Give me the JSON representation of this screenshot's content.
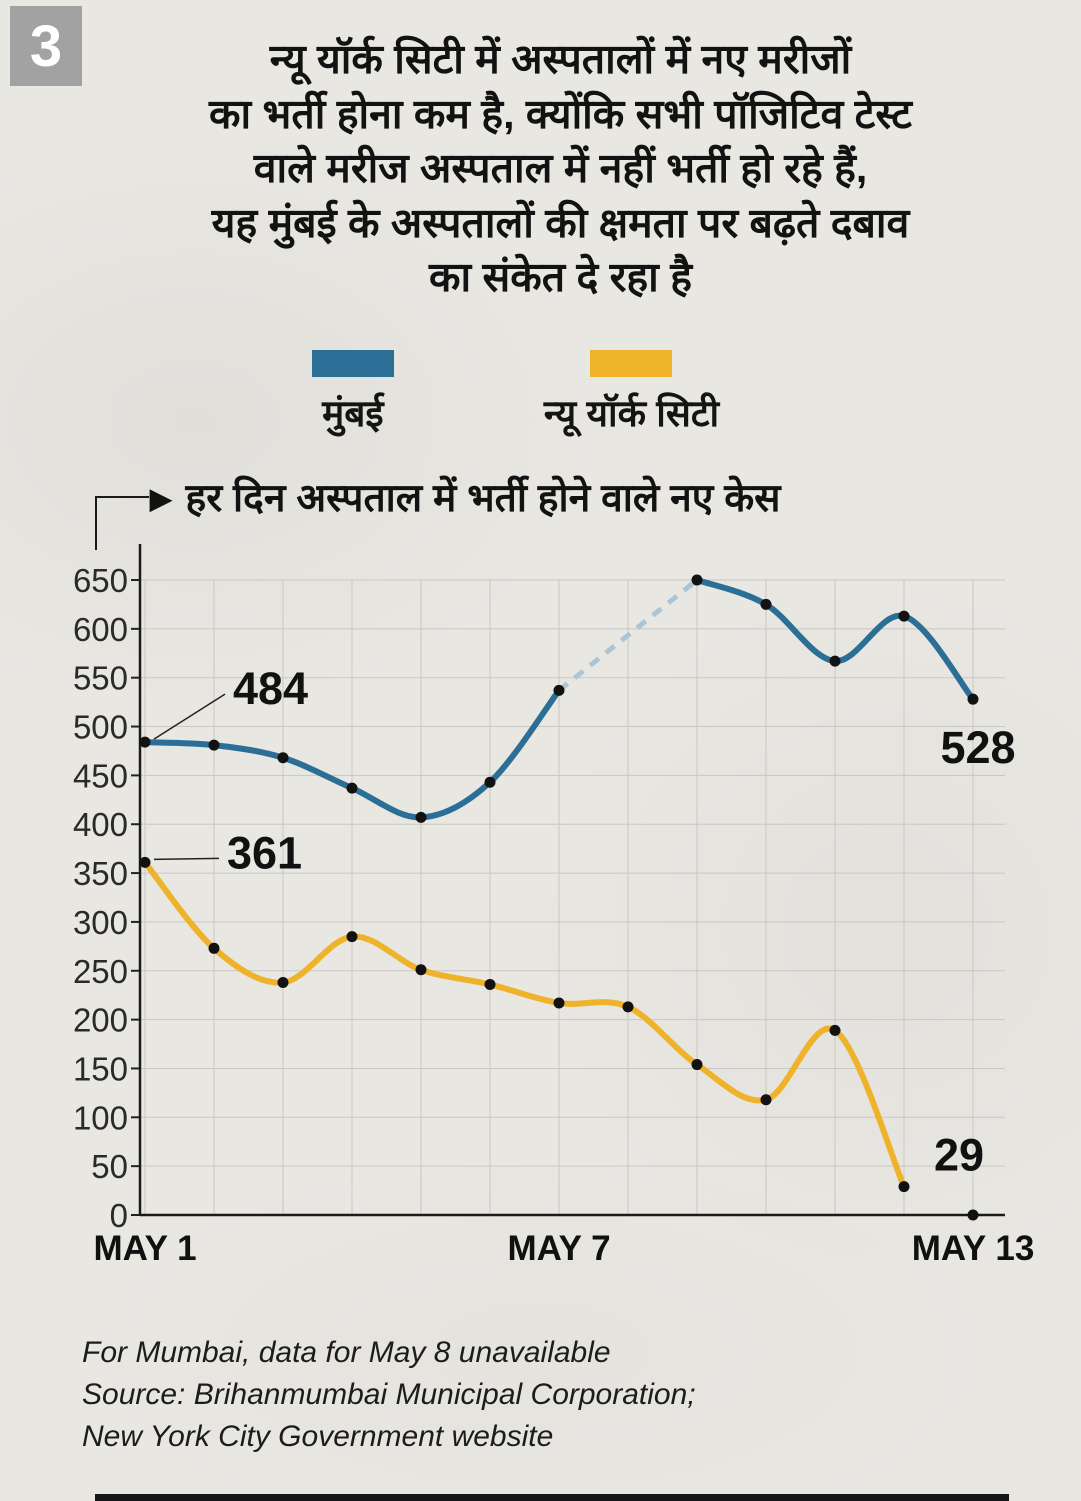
{
  "page": {
    "badge": "3",
    "title_lines": [
      "न्यू यॉर्क सिटी में अस्पतालों में नए मरीजों",
      "का भर्ती होना कम है, क्योंकि सभी पॉजिटिव टेस्ट",
      "वाले मरीज अस्पताल में नहीं भर्ती हो रहे हैं,",
      "यह मुंबई के अस्पतालों की क्षमता पर बढ़ते दबाव",
      "का संकेत दे रहा है"
    ],
    "footnote_lines": [
      "For Mumbai, data for May 8 unavailable",
      "Source: Brihanmumbai Municipal Corporation;",
      "New York City Government website"
    ]
  },
  "legend": [
    {
      "label": "मुंबई",
      "color": "#2b6e96"
    },
    {
      "label": "न्यू यॉर्क सिटी",
      "color": "#eeb32b"
    }
  ],
  "chart_data": {
    "type": "line",
    "axis_note": "हर दिन अस्पताल में भर्ती होने वाले नए केस",
    "x": [
      "May 1",
      "May 2",
      "May 3",
      "May 4",
      "May 5",
      "May 6",
      "May 7",
      "May 8",
      "May 9",
      "May 10",
      "May 11",
      "May 12",
      "May 13"
    ],
    "x_ticks": [
      {
        "index": 0,
        "label": "MAY 1"
      },
      {
        "index": 6,
        "label": "MAY 7"
      },
      {
        "index": 12,
        "label": "MAY 13"
      }
    ],
    "ylim": [
      0,
      650
    ],
    "ytick_step": 50,
    "grid": true,
    "grid_color": "#c8c7c2",
    "legend_position": "top",
    "series": [
      {
        "name": "मुंबई",
        "color": "#2b6e96",
        "values": [
          484,
          481,
          468,
          437,
          407,
          443,
          537,
          null,
          650,
          625,
          567,
          613,
          528
        ],
        "solid_segments": [
          [
            0,
            6
          ],
          [
            8,
            12
          ]
        ],
        "dashed_segments": [
          [
            6,
            8
          ]
        ],
        "dashed_color": "#a9c5d6",
        "labels": [
          {
            "index": 0,
            "text": "484",
            "dx": 88,
            "dy": -38,
            "anchor": "start",
            "connector": true
          },
          {
            "index": 12,
            "text": "528",
            "dx": 5,
            "dy": 64,
            "anchor": "middle",
            "connector": false
          }
        ]
      },
      {
        "name": "न्यू यॉर्क सिटी",
        "color": "#eeb32b",
        "values": [
          361,
          273,
          238,
          285,
          251,
          236,
          217,
          213,
          154,
          118,
          189,
          29,
          0
        ],
        "solid_segments": [
          [
            0,
            11
          ]
        ],
        "dashed_segments": [],
        "labels": [
          {
            "index": 0,
            "text": "361",
            "dx": 82,
            "dy": 6,
            "anchor": "start",
            "connector": true
          },
          {
            "index": 11,
            "text": "29",
            "dx": 30,
            "dy": -16,
            "anchor": "start",
            "connector": false
          }
        ]
      }
    ]
  }
}
